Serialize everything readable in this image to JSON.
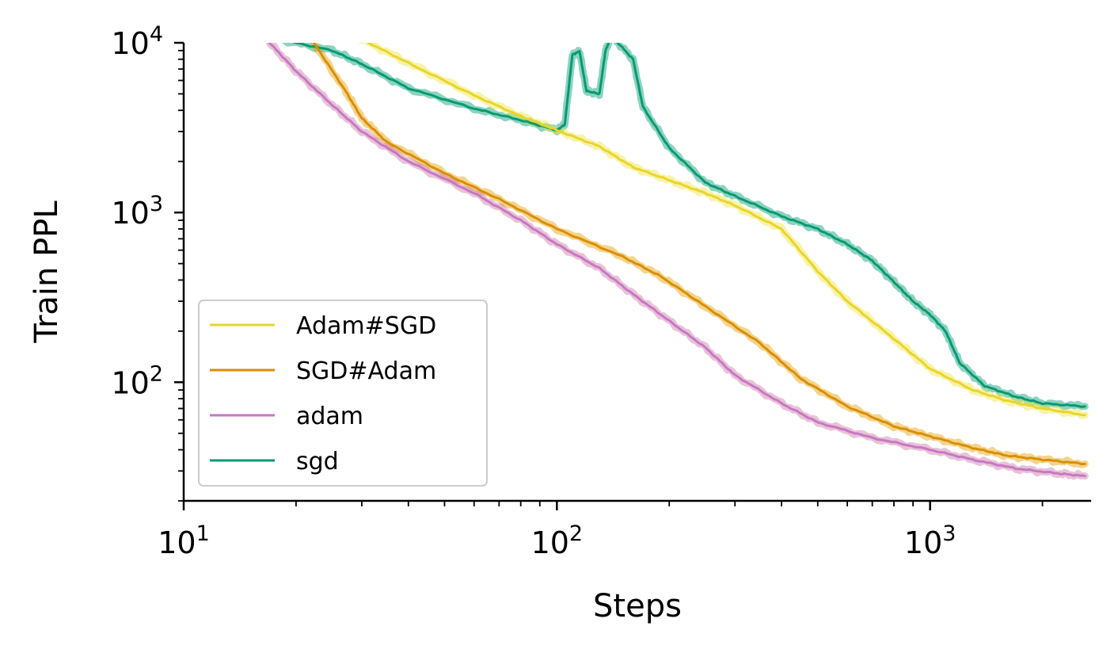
{
  "chart_data": {
    "type": "line",
    "xlabel": "Steps",
    "ylabel": "Train PPL",
    "xscale": "log",
    "yscale": "log",
    "xlim": [
      10,
      2700
    ],
    "ylim": [
      20,
      10000
    ],
    "x_ticks": [
      {
        "base": "10",
        "exp": "1",
        "value": 10
      },
      {
        "base": "10",
        "exp": "2",
        "value": 100
      },
      {
        "base": "10",
        "exp": "3",
        "value": 1000
      }
    ],
    "y_ticks": [
      {
        "base": "10",
        "exp": "2",
        "value": 100
      },
      {
        "base": "10",
        "exp": "3",
        "value": 1000
      },
      {
        "base": "10",
        "exp": "4",
        "value": 10000
      }
    ],
    "grid": false,
    "legend_position": "lower-left",
    "series": [
      {
        "name": "Adam#SGD",
        "color": "#f0e442",
        "line_color": "#e8d52a",
        "points": [
          [
            24,
            12500
          ],
          [
            30,
            10500
          ],
          [
            40,
            7600
          ],
          [
            60,
            4900
          ],
          [
            80,
            3700
          ],
          [
            100,
            3050
          ],
          [
            130,
            2450
          ],
          [
            160,
            1850
          ],
          [
            200,
            1550
          ],
          [
            250,
            1300
          ],
          [
            300,
            1100
          ],
          [
            400,
            800
          ],
          [
            500,
            450
          ],
          [
            600,
            300
          ],
          [
            800,
            180
          ],
          [
            1000,
            120
          ],
          [
            1300,
            90
          ],
          [
            1600,
            78
          ],
          [
            2000,
            70
          ],
          [
            2600,
            64
          ]
        ]
      },
      {
        "name": "SGD#Adam",
        "color": "#e69f00",
        "line_color": "#d98e04",
        "points": [
          [
            22,
            10500
          ],
          [
            27,
            5300
          ],
          [
            30,
            3600
          ],
          [
            35,
            2600
          ],
          [
            50,
            1700
          ],
          [
            70,
            1200
          ],
          [
            100,
            800
          ],
          [
            150,
            550
          ],
          [
            190,
            420
          ],
          [
            250,
            280
          ],
          [
            350,
            170
          ],
          [
            450,
            105
          ],
          [
            600,
            72
          ],
          [
            800,
            55
          ],
          [
            1000,
            48
          ],
          [
            1300,
            41
          ],
          [
            1600,
            37
          ],
          [
            2000,
            35
          ],
          [
            2600,
            33
          ]
        ]
      },
      {
        "name": "adam",
        "color": "#cc79a7",
        "line_color": "#c777c4",
        "points": [
          [
            17,
            10000
          ],
          [
            20,
            6800
          ],
          [
            25,
            4300
          ],
          [
            30,
            3000
          ],
          [
            40,
            2000
          ],
          [
            60,
            1300
          ],
          [
            80,
            900
          ],
          [
            100,
            650
          ],
          [
            130,
            470
          ],
          [
            160,
            330
          ],
          [
            200,
            230
          ],
          [
            250,
            160
          ],
          [
            300,
            110
          ],
          [
            400,
            75
          ],
          [
            500,
            58
          ],
          [
            700,
            47
          ],
          [
            1000,
            40
          ],
          [
            1300,
            35
          ],
          [
            1700,
            31
          ],
          [
            2200,
            29
          ],
          [
            2600,
            28
          ]
        ]
      },
      {
        "name": "sgd",
        "color": "#009e73",
        "line_color": "#059a73",
        "points": [
          [
            18,
            10500
          ],
          [
            25,
            9000
          ],
          [
            30,
            7500
          ],
          [
            40,
            5400
          ],
          [
            60,
            4100
          ],
          [
            80,
            3500
          ],
          [
            100,
            3050
          ],
          [
            105,
            3300
          ],
          [
            110,
            8500
          ],
          [
            115,
            8900
          ],
          [
            120,
            5200
          ],
          [
            130,
            5000
          ],
          [
            135,
            9000
          ],
          [
            140,
            11000
          ],
          [
            160,
            8000
          ],
          [
            170,
            4200
          ],
          [
            200,
            2400
          ],
          [
            250,
            1500
          ],
          [
            300,
            1250
          ],
          [
            400,
            950
          ],
          [
            500,
            800
          ],
          [
            600,
            650
          ],
          [
            700,
            520
          ],
          [
            800,
            390
          ],
          [
            900,
            300
          ],
          [
            1000,
            250
          ],
          [
            1100,
            200
          ],
          [
            1200,
            130
          ],
          [
            1400,
            95
          ],
          [
            1700,
            82
          ],
          [
            2000,
            75
          ],
          [
            2600,
            72
          ]
        ]
      }
    ]
  }
}
